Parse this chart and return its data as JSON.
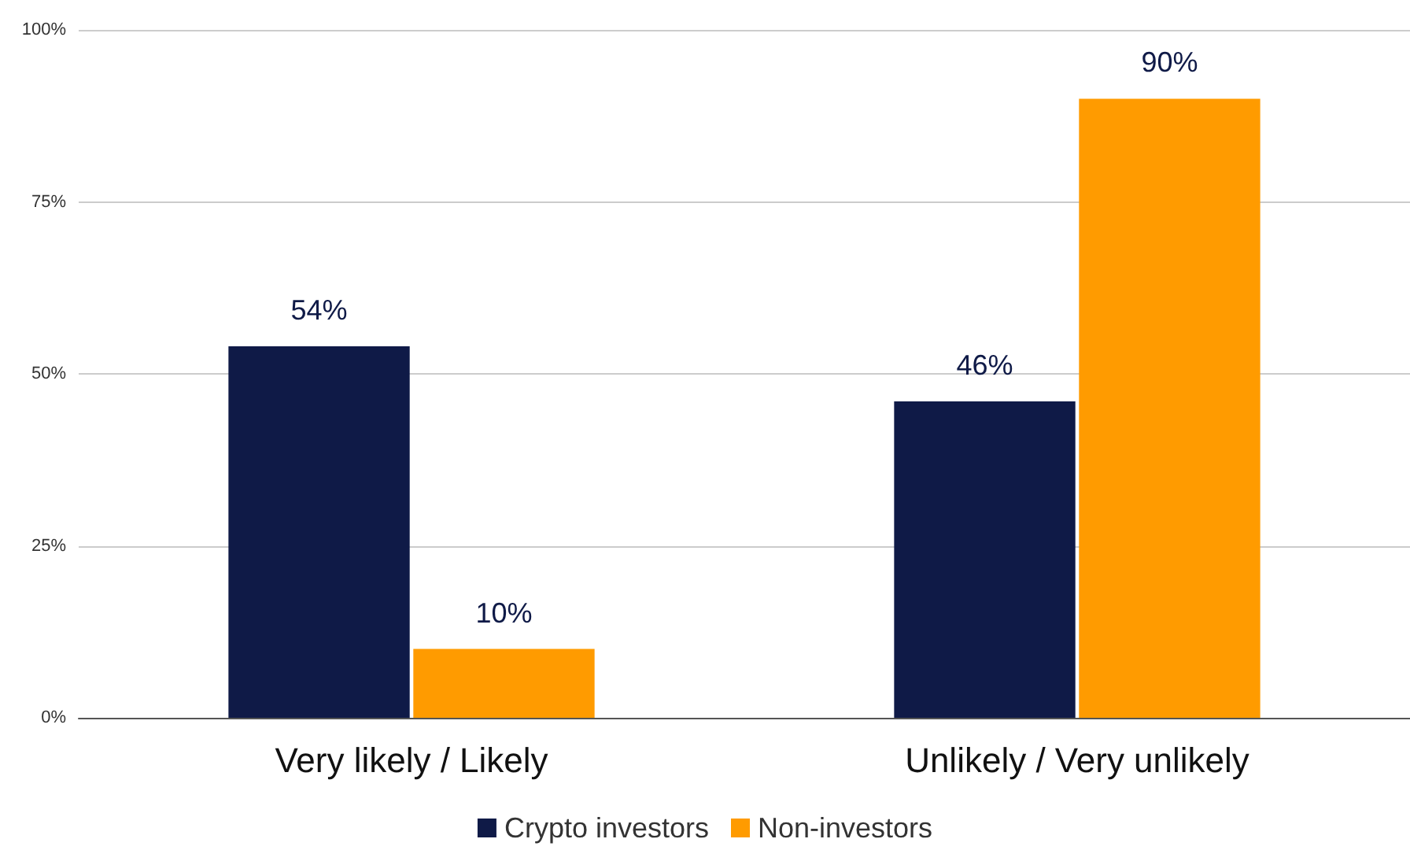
{
  "chart_data": {
    "type": "bar",
    "categories": [
      "Very likely / Likely",
      "Unlikely / Very unlikely"
    ],
    "series": [
      {
        "name": "Crypto investors",
        "color": "#0f1a47",
        "values": [
          54,
          46
        ],
        "value_labels": [
          "54%",
          "46%"
        ]
      },
      {
        "name": "Non-investors",
        "color": "#ff9b00",
        "values": [
          10,
          90
        ],
        "value_labels": [
          "10%",
          "90%"
        ]
      }
    ],
    "ylim": [
      0,
      100
    ],
    "yticks": [
      {
        "value": 0,
        "label": "0%"
      },
      {
        "value": 25,
        "label": "25%"
      },
      {
        "value": 50,
        "label": "50%"
      },
      {
        "value": 75,
        "label": "75%"
      },
      {
        "value": 100,
        "label": "100%"
      }
    ],
    "grid": "y",
    "legend": "bottom"
  }
}
